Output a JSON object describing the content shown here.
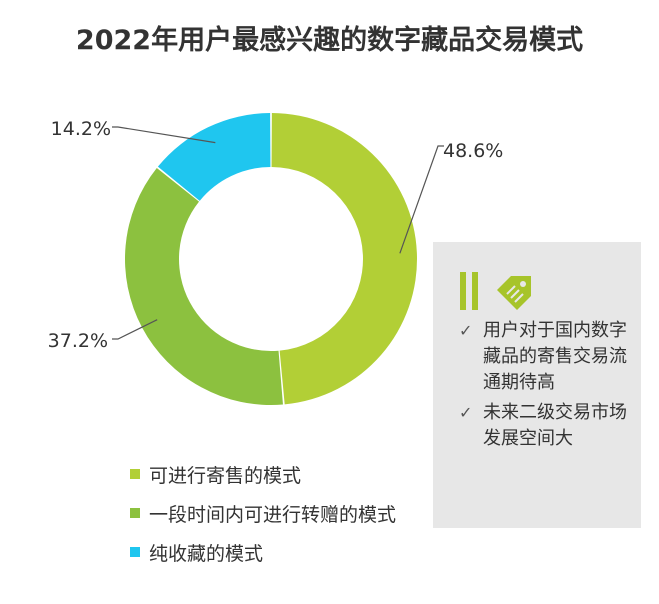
{
  "title": "2022年用户最感兴趣的数字藏品交易模式",
  "chart_data": {
    "type": "pie",
    "style": "donut",
    "categories": [
      "可进行寄售的模式",
      "一段时间内可进行转赠的模式",
      "纯收藏的模式"
    ],
    "values": [
      48.6,
      37.2,
      14.2
    ],
    "labels": [
      "48.6%",
      "37.2%",
      "14.2%"
    ],
    "colors": [
      "#b2cf36",
      "#8cc13f",
      "#1fc6ef"
    ],
    "legend_placement": "bottom-left"
  },
  "note": {
    "icon": "tag-icon",
    "check_icon": "checkmark-icon",
    "items": [
      "用户对于国内数字藏品的寄售交易流通期待高",
      "未来二级交易市场发展空间大"
    ]
  }
}
